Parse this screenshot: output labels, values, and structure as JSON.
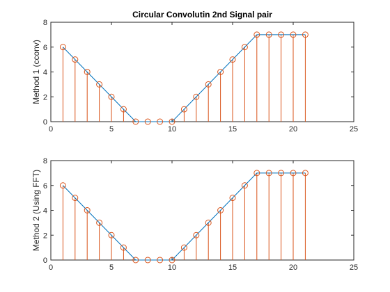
{
  "chart_data": [
    {
      "type": "line",
      "title": "Circular Convolutin 2nd Signal pair",
      "ylabel": "Method 1 (cconv)",
      "xlabel": "",
      "xlim": [
        0,
        25
      ],
      "ylim": [
        0,
        8
      ],
      "xticks": [
        0,
        5,
        10,
        15,
        20,
        25
      ],
      "yticks": [
        0,
        2,
        4,
        6,
        8
      ],
      "grid": false,
      "x": [
        1,
        2,
        3,
        4,
        5,
        6,
        7,
        8,
        9,
        10,
        11,
        12,
        13,
        14,
        15,
        16,
        17,
        18,
        19,
        20,
        21
      ],
      "series": [
        {
          "style": "line",
          "color": "#0072BD",
          "values": [
            6,
            5,
            4,
            3,
            2,
            1,
            0,
            0,
            0,
            0,
            1,
            2,
            3,
            4,
            5,
            6,
            7,
            7,
            7,
            7,
            7
          ]
        },
        {
          "style": "stem",
          "color": "#D95319",
          "values": [
            6,
            5,
            4,
            3,
            2,
            1,
            0,
            0,
            0,
            0,
            1,
            2,
            3,
            4,
            5,
            6,
            7,
            7,
            7,
            7,
            7
          ]
        }
      ]
    },
    {
      "type": "line",
      "title": "",
      "ylabel": "Method 2 (Using FFT)",
      "xlabel": "",
      "xlim": [
        0,
        25
      ],
      "ylim": [
        0,
        8
      ],
      "xticks": [
        0,
        5,
        10,
        15,
        20,
        25
      ],
      "yticks": [
        0,
        2,
        4,
        6,
        8
      ],
      "grid": false,
      "x": [
        1,
        2,
        3,
        4,
        5,
        6,
        7,
        8,
        9,
        10,
        11,
        12,
        13,
        14,
        15,
        16,
        17,
        18,
        19,
        20,
        21
      ],
      "series": [
        {
          "style": "line",
          "color": "#0072BD",
          "values": [
            6,
            5,
            4,
            3,
            2,
            1,
            0,
            0,
            0,
            0,
            1,
            2,
            3,
            4,
            5,
            6,
            7,
            7,
            7,
            7,
            7
          ]
        },
        {
          "style": "stem",
          "color": "#D95319",
          "values": [
            6,
            5,
            4,
            3,
            2,
            1,
            0,
            0,
            0,
            0,
            1,
            2,
            3,
            4,
            5,
            6,
            7,
            7,
            7,
            7,
            7
          ]
        }
      ]
    }
  ]
}
